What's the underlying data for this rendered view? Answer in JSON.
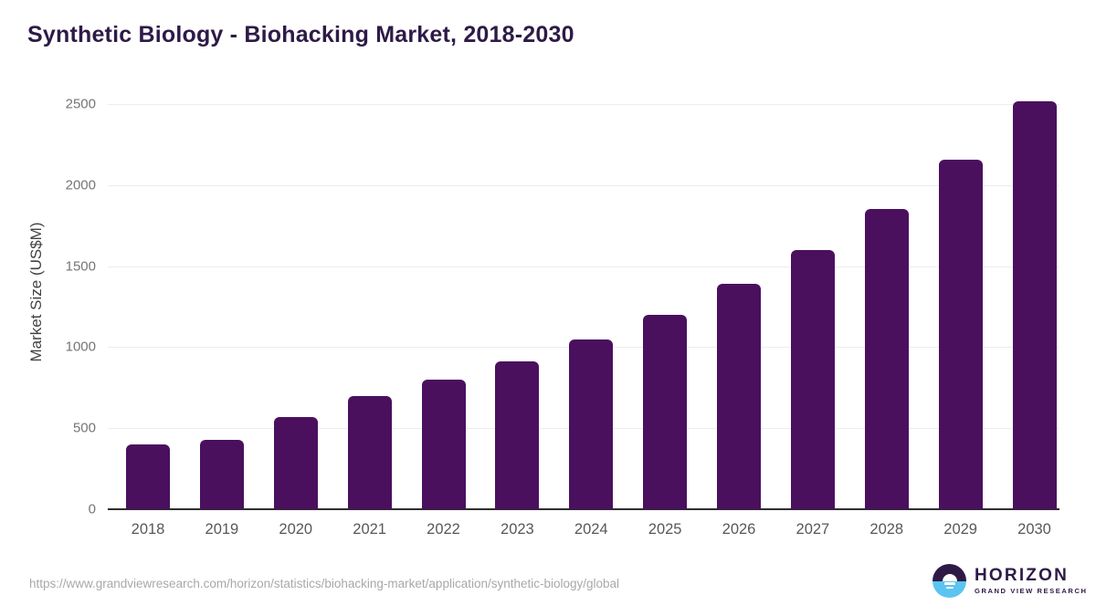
{
  "page": {
    "source_url": "https://www.grandviewresearch.com/horizon/statistics/biohacking-market/application/synthetic-biology/global",
    "logo": {
      "brand": "HORIZON",
      "tagline": "GRAND VIEW RESEARCH"
    }
  },
  "colors": {
    "bar": "#4A105E",
    "title": "#2E1A47",
    "axis_line": "#2F2F2F",
    "gridline": "#ECECEC",
    "y_tick_label": "#757575",
    "x_tick_label": "#55585C",
    "y_axis_title": "#424242",
    "source_text": "#A8A8A8",
    "logo_purple": "#2E1A47",
    "logo_blue": "#5BC4F0"
  },
  "chart_data": {
    "type": "bar",
    "title": "Synthetic Biology - Biohacking Market, 2018-2030",
    "categories": [
      "2018",
      "2019",
      "2020",
      "2021",
      "2022",
      "2023",
      "2024",
      "2025",
      "2026",
      "2027",
      "2028",
      "2029",
      "2030"
    ],
    "values": [
      400,
      430,
      570,
      700,
      800,
      915,
      1050,
      1200,
      1390,
      1600,
      1855,
      2155,
      2515
    ],
    "xlabel": "",
    "ylabel": "Market Size (US$M)",
    "ylim": [
      0,
      2500
    ],
    "yticks": [
      0,
      500,
      1000,
      1500,
      2000,
      2500
    ],
    "grid": "horizontal",
    "legend": "none",
    "bar_color": "#4A105E"
  }
}
